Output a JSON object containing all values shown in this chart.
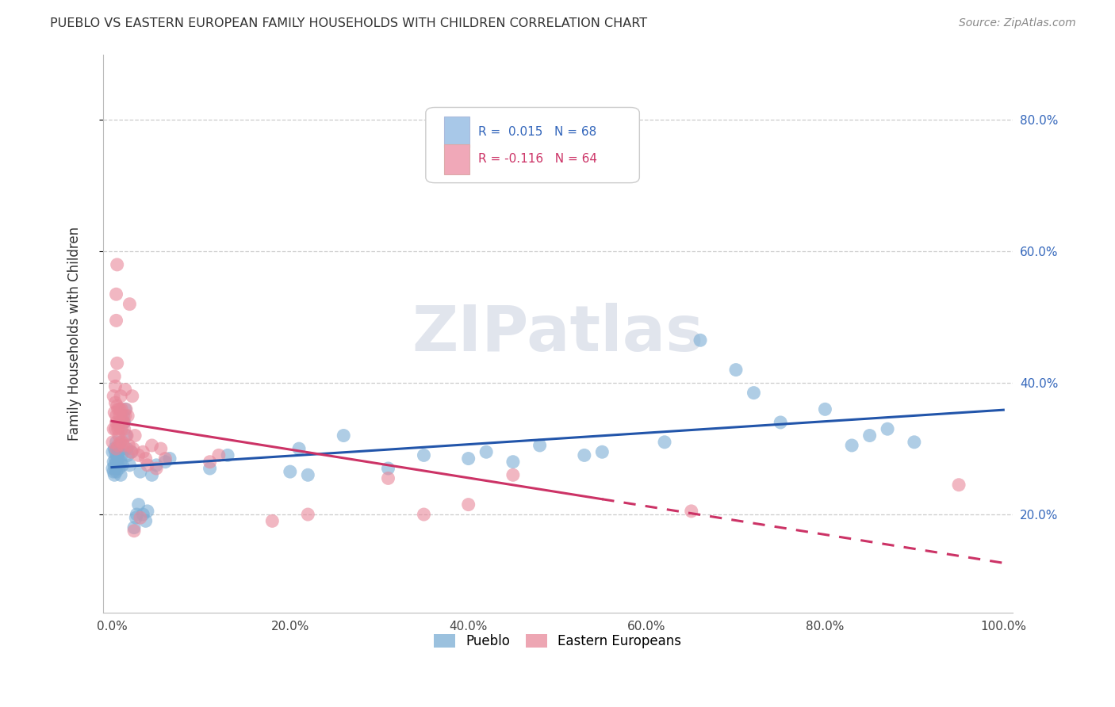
{
  "title": "PUEBLO VS EASTERN EUROPEAN FAMILY HOUSEHOLDS WITH CHILDREN CORRELATION CHART",
  "source": "Source: ZipAtlas.com",
  "ylabel": "Family Households with Children",
  "y_ticks": [
    0.2,
    0.4,
    0.6,
    0.8
  ],
  "y_tick_labels": [
    "20.0%",
    "40.0%",
    "60.0%",
    "80.0%"
  ],
  "pueblo_color": "#7aadd4",
  "eastern_color": "#e8889a",
  "pueblo_line_color": "#2255aa",
  "eastern_line_color": "#cc3366",
  "background_color": "#ffffff",
  "grid_color": "#cccccc",
  "watermark": "ZIPatlas",
  "pueblo_scatter": [
    [
      0.001,
      0.27
    ],
    [
      0.001,
      0.295
    ],
    [
      0.002,
      0.28
    ],
    [
      0.002,
      0.265
    ],
    [
      0.003,
      0.3
    ],
    [
      0.003,
      0.275
    ],
    [
      0.003,
      0.26
    ],
    [
      0.004,
      0.285
    ],
    [
      0.004,
      0.295
    ],
    [
      0.004,
      0.27
    ],
    [
      0.005,
      0.28
    ],
    [
      0.005,
      0.31
    ],
    [
      0.005,
      0.265
    ],
    [
      0.006,
      0.29
    ],
    [
      0.006,
      0.3
    ],
    [
      0.007,
      0.275
    ],
    [
      0.007,
      0.285
    ],
    [
      0.008,
      0.295
    ],
    [
      0.008,
      0.27
    ],
    [
      0.009,
      0.305
    ],
    [
      0.01,
      0.28
    ],
    [
      0.01,
      0.26
    ],
    [
      0.011,
      0.29
    ],
    [
      0.012,
      0.275
    ],
    [
      0.013,
      0.35
    ],
    [
      0.014,
      0.34
    ],
    [
      0.015,
      0.36
    ],
    [
      0.016,
      0.32
    ],
    [
      0.017,
      0.3
    ],
    [
      0.018,
      0.29
    ],
    [
      0.02,
      0.275
    ],
    [
      0.022,
      0.295
    ],
    [
      0.025,
      0.18
    ],
    [
      0.027,
      0.195
    ],
    [
      0.028,
      0.2
    ],
    [
      0.03,
      0.215
    ],
    [
      0.032,
      0.265
    ],
    [
      0.035,
      0.2
    ],
    [
      0.038,
      0.19
    ],
    [
      0.04,
      0.205
    ],
    [
      0.045,
      0.26
    ],
    [
      0.05,
      0.275
    ],
    [
      0.06,
      0.28
    ],
    [
      0.065,
      0.285
    ],
    [
      0.11,
      0.27
    ],
    [
      0.13,
      0.29
    ],
    [
      0.2,
      0.265
    ],
    [
      0.21,
      0.3
    ],
    [
      0.22,
      0.26
    ],
    [
      0.26,
      0.32
    ],
    [
      0.31,
      0.27
    ],
    [
      0.35,
      0.29
    ],
    [
      0.4,
      0.285
    ],
    [
      0.42,
      0.295
    ],
    [
      0.45,
      0.28
    ],
    [
      0.48,
      0.305
    ],
    [
      0.53,
      0.29
    ],
    [
      0.55,
      0.295
    ],
    [
      0.62,
      0.31
    ],
    [
      0.66,
      0.465
    ],
    [
      0.7,
      0.42
    ],
    [
      0.72,
      0.385
    ],
    [
      0.75,
      0.34
    ],
    [
      0.8,
      0.36
    ],
    [
      0.83,
      0.305
    ],
    [
      0.85,
      0.32
    ],
    [
      0.87,
      0.33
    ],
    [
      0.9,
      0.31
    ]
  ],
  "eastern_scatter": [
    [
      0.001,
      0.31
    ],
    [
      0.002,
      0.33
    ],
    [
      0.002,
      0.38
    ],
    [
      0.003,
      0.355
    ],
    [
      0.003,
      0.41
    ],
    [
      0.004,
      0.33
    ],
    [
      0.004,
      0.37
    ],
    [
      0.004,
      0.395
    ],
    [
      0.005,
      0.35
    ],
    [
      0.005,
      0.34
    ],
    [
      0.005,
      0.3
    ],
    [
      0.005,
      0.495
    ],
    [
      0.005,
      0.535
    ],
    [
      0.006,
      0.43
    ],
    [
      0.006,
      0.365
    ],
    [
      0.006,
      0.58
    ],
    [
      0.007,
      0.33
    ],
    [
      0.007,
      0.36
    ],
    [
      0.007,
      0.335
    ],
    [
      0.007,
      0.305
    ],
    [
      0.008,
      0.32
    ],
    [
      0.008,
      0.34
    ],
    [
      0.009,
      0.36
    ],
    [
      0.009,
      0.35
    ],
    [
      0.01,
      0.38
    ],
    [
      0.01,
      0.31
    ],
    [
      0.011,
      0.36
    ],
    [
      0.011,
      0.33
    ],
    [
      0.012,
      0.345
    ],
    [
      0.012,
      0.31
    ],
    [
      0.013,
      0.34
    ],
    [
      0.013,
      0.305
    ],
    [
      0.014,
      0.33
    ],
    [
      0.015,
      0.39
    ],
    [
      0.015,
      0.35
    ],
    [
      0.016,
      0.36
    ],
    [
      0.017,
      0.32
    ],
    [
      0.018,
      0.35
    ],
    [
      0.019,
      0.305
    ],
    [
      0.02,
      0.52
    ],
    [
      0.022,
      0.295
    ],
    [
      0.023,
      0.38
    ],
    [
      0.024,
      0.3
    ],
    [
      0.025,
      0.175
    ],
    [
      0.026,
      0.32
    ],
    [
      0.03,
      0.29
    ],
    [
      0.032,
      0.195
    ],
    [
      0.035,
      0.295
    ],
    [
      0.038,
      0.285
    ],
    [
      0.04,
      0.275
    ],
    [
      0.045,
      0.305
    ],
    [
      0.05,
      0.27
    ],
    [
      0.055,
      0.3
    ],
    [
      0.06,
      0.285
    ],
    [
      0.11,
      0.28
    ],
    [
      0.12,
      0.29
    ],
    [
      0.18,
      0.19
    ],
    [
      0.22,
      0.2
    ],
    [
      0.31,
      0.255
    ],
    [
      0.35,
      0.2
    ],
    [
      0.4,
      0.215
    ],
    [
      0.45,
      0.26
    ],
    [
      0.65,
      0.205
    ],
    [
      0.95,
      0.245
    ]
  ],
  "xlim": [
    -0.01,
    1.01
  ],
  "ylim": [
    0.05,
    0.9
  ]
}
